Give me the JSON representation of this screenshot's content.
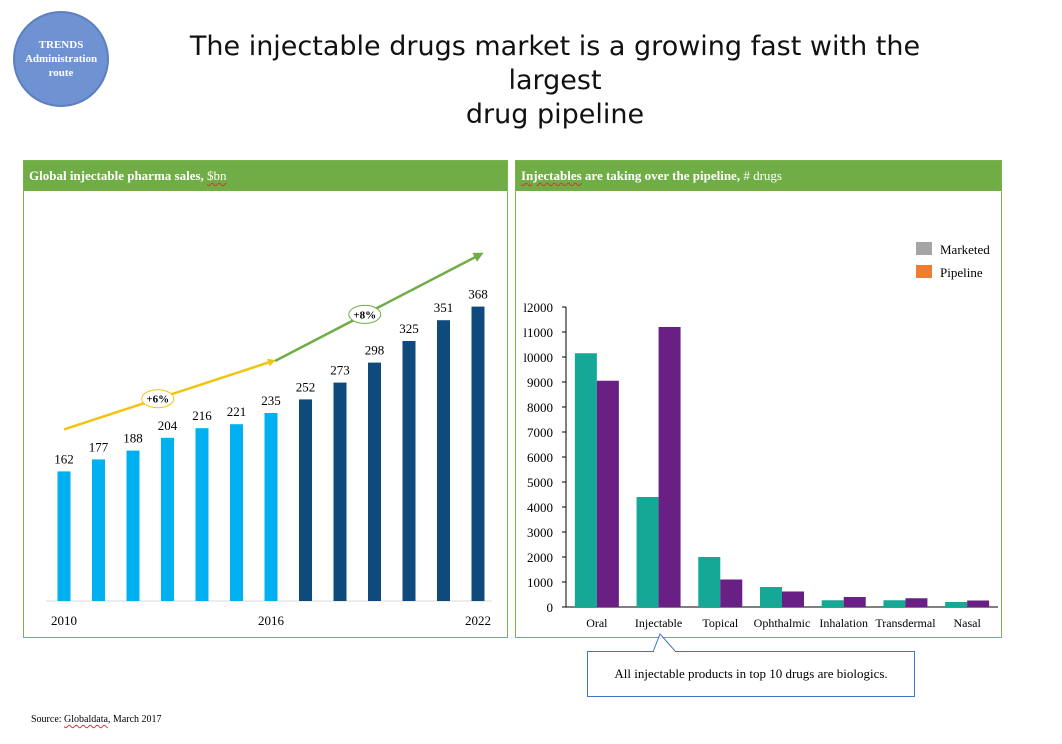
{
  "badge": {
    "line1": "TRENDS",
    "line2": "Administration",
    "line3": "route"
  },
  "title": {
    "line1": "The injectable drugs market is a growing fast with the largest",
    "line2": "drug pipeline"
  },
  "colors": {
    "header_green": "#70ad47",
    "bar_light": "#00b0f0",
    "bar_dark": "#0e4a7b",
    "trend_yellow": "#f2c40f",
    "trend_green": "#70ad47",
    "marketed": "#14a896",
    "pipeline": "#6a1f84",
    "legend_marketed": "#a5a5a5",
    "legend_pipeline": "#ed7d31"
  },
  "left_panel": {
    "header_bold": "Global injectable pharma sales,",
    "header_unit": "$bn"
  },
  "right_panel": {
    "header_bold_1": "Injectables",
    "header_bold_2": " are taking over the pipeline,",
    "header_unit": " # drugs"
  },
  "chart_data": [
    {
      "type": "bar",
      "title": "Global injectable pharma sales, $bn",
      "categories": [
        "2010",
        "2011",
        "2012",
        "2013",
        "2014",
        "2015",
        "2016",
        "2017",
        "2018",
        "2019",
        "2020",
        "2021",
        "2022"
      ],
      "x_tick_labels": [
        "2010",
        "",
        "",
        "",
        "",
        "",
        "2016",
        "",
        "",
        "",
        "",
        "",
        "2022"
      ],
      "values": [
        162,
        177,
        188,
        204,
        216,
        221,
        235,
        252,
        273,
        298,
        325,
        351,
        368
      ],
      "bar_colors": [
        "light",
        "light",
        "light",
        "light",
        "light",
        "light",
        "light",
        "dark",
        "dark",
        "dark",
        "dark",
        "dark",
        "dark"
      ],
      "ylim": [
        0,
        400
      ],
      "annotations": [
        {
          "label": "+6%",
          "span": [
            "2010",
            "2016"
          ],
          "color": "yellow"
        },
        {
          "label": "+8%",
          "span": [
            "2016",
            "2022"
          ],
          "color": "green"
        }
      ],
      "grid": false
    },
    {
      "type": "bar",
      "title": "Injectables are taking over the pipeline, # drugs",
      "categories": [
        "Oral",
        "Injectable",
        "Topical",
        "Ophthalmic",
        "Inhalation",
        "Transdermal",
        "Nasal"
      ],
      "series": [
        {
          "name": "Marketed",
          "values": [
            10150,
            4400,
            2000,
            800,
            270,
            270,
            200
          ]
        },
        {
          "name": "Pipeline",
          "values": [
            9050,
            11200,
            1100,
            620,
            400,
            350,
            260
          ]
        }
      ],
      "y_ticks": [
        "0",
        "1000",
        "2000",
        "3000",
        "4000",
        "5000",
        "6000",
        "7000",
        "8000",
        "9000",
        "10000",
        "11000",
        "12000"
      ],
      "y_tick_labels": [
        "0",
        "1000",
        "2000",
        "3000",
        "4000",
        "5000",
        "6000",
        "7000",
        "8000",
        "9000",
        "l0000",
        "l1000",
        "l2000"
      ],
      "ylim": [
        0,
        12000
      ],
      "legend": {
        "position": "top-right",
        "entries": [
          "Marketed",
          "Pipeline"
        ]
      },
      "grid": false
    }
  ],
  "callout": {
    "text": "All injectable products in top 10 drugs are biologics."
  },
  "source": {
    "prefix": "Source: ",
    "name": "Globaldata",
    "suffix": ", March 2017"
  }
}
